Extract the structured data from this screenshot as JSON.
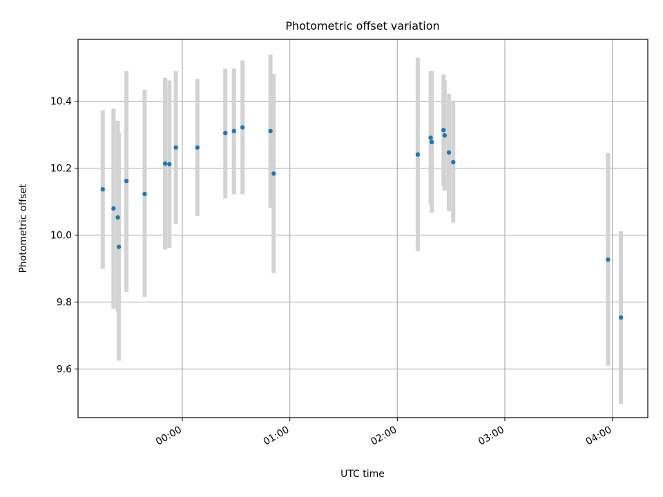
{
  "chart_data": {
    "type": "scatter",
    "title": "Photometric offset variation",
    "xlabel": "UTC time",
    "ylabel": "Photometric offset",
    "x_unit": "hours_utc",
    "xlim": [
      -0.97,
      4.33
    ],
    "ylim": [
      9.455,
      10.585
    ],
    "x_ticks": [
      {
        "value": 0,
        "label": "00:00"
      },
      {
        "value": 1,
        "label": "01:00"
      },
      {
        "value": 2,
        "label": "02:00"
      },
      {
        "value": 3,
        "label": "03:00"
      },
      {
        "value": 4,
        "label": "04:00"
      }
    ],
    "y_ticks": [
      {
        "value": 9.6,
        "label": "9.6"
      },
      {
        "value": 9.8,
        "label": "9.8"
      },
      {
        "value": 10.0,
        "label": "10.0"
      },
      {
        "value": 10.2,
        "label": "10.2"
      },
      {
        "value": 10.4,
        "label": "10.4"
      }
    ],
    "grid": true,
    "marker_color": "#1f77b4",
    "errorbar_color": "#d3d3d3",
    "points": [
      {
        "x": -0.74,
        "y": 10.137,
        "lo": 9.9,
        "hi": 10.373
      },
      {
        "x": -0.64,
        "y": 10.08,
        "lo": 9.78,
        "hi": 10.378
      },
      {
        "x": -0.6,
        "y": 10.053,
        "lo": 9.77,
        "hi": 10.342
      },
      {
        "x": -0.59,
        "y": 9.965,
        "lo": 9.625,
        "hi": 10.305
      },
      {
        "x": -0.52,
        "y": 10.162,
        "lo": 9.83,
        "hi": 10.49
      },
      {
        "x": -0.35,
        "y": 10.123,
        "lo": 9.815,
        "hi": 10.435
      },
      {
        "x": -0.16,
        "y": 10.214,
        "lo": 9.957,
        "hi": 10.47
      },
      {
        "x": -0.12,
        "y": 10.212,
        "lo": 9.962,
        "hi": 10.462
      },
      {
        "x": -0.06,
        "y": 10.262,
        "lo": 10.032,
        "hi": 10.49
      },
      {
        "x": 0.14,
        "y": 10.262,
        "lo": 10.057,
        "hi": 10.467
      },
      {
        "x": 0.4,
        "y": 10.305,
        "lo": 10.11,
        "hi": 10.497
      },
      {
        "x": 0.48,
        "y": 10.311,
        "lo": 10.122,
        "hi": 10.498
      },
      {
        "x": 0.56,
        "y": 10.322,
        "lo": 10.122,
        "hi": 10.522
      },
      {
        "x": 0.82,
        "y": 10.311,
        "lo": 10.082,
        "hi": 10.54
      },
      {
        "x": 0.85,
        "y": 10.184,
        "lo": 9.887,
        "hi": 10.482
      },
      {
        "x": 2.19,
        "y": 10.241,
        "lo": 9.952,
        "hi": 10.53
      },
      {
        "x": 2.31,
        "y": 10.291,
        "lo": 10.092,
        "hi": 10.49
      },
      {
        "x": 2.32,
        "y": 10.278,
        "lo": 10.067,
        "hi": 10.49
      },
      {
        "x": 2.43,
        "y": 10.314,
        "lo": 10.147,
        "hi": 10.48
      },
      {
        "x": 2.44,
        "y": 10.298,
        "lo": 10.133,
        "hi": 10.463
      },
      {
        "x": 2.48,
        "y": 10.247,
        "lo": 10.072,
        "hi": 10.422
      },
      {
        "x": 2.52,
        "y": 10.218,
        "lo": 10.037,
        "hi": 10.4
      },
      {
        "x": 3.96,
        "y": 9.927,
        "lo": 9.61,
        "hi": 10.245
      },
      {
        "x": 4.08,
        "y": 9.754,
        "lo": 9.495,
        "hi": 10.012
      }
    ]
  }
}
